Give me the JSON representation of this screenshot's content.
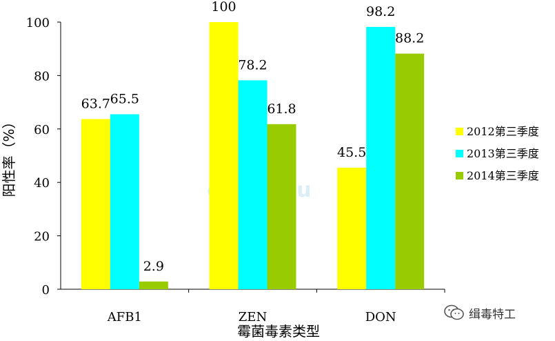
{
  "chart_data": {
    "type": "bar",
    "categories": [
      "AFB1",
      "ZEN",
      "DON"
    ],
    "series": [
      {
        "name": "2012第三季度",
        "values": [
          63.7,
          100,
          45.5
        ],
        "labels": [
          "63.7",
          "100",
          "45.5"
        ],
        "color": "#ffff00"
      },
      {
        "name": "2013第三季度",
        "values": [
          65.5,
          78.2,
          98.2
        ],
        "labels": [
          "65.5",
          "78.2",
          "98.2"
        ],
        "color": "#00ffff"
      },
      {
        "name": "2014第三季度",
        "values": [
          2.9,
          61.8,
          88.2
        ],
        "labels": [
          "2.9",
          "61.8",
          "88.2"
        ],
        "color": "#99cc00"
      }
    ],
    "ylim": [
      0,
      100
    ],
    "yticks": [
      "0",
      "20",
      "40",
      "60",
      "80",
      "100"
    ],
    "ylabel": "阳性率（%）",
    "xlabel": "霉菌毒素类型",
    "legend_position": "right",
    "grid": false
  },
  "watermark": {
    "logo_text": "宠",
    "sub_text": "chongwu"
  },
  "brand": {
    "name": "缉毒特工",
    "icon": "wechat-icon"
  }
}
